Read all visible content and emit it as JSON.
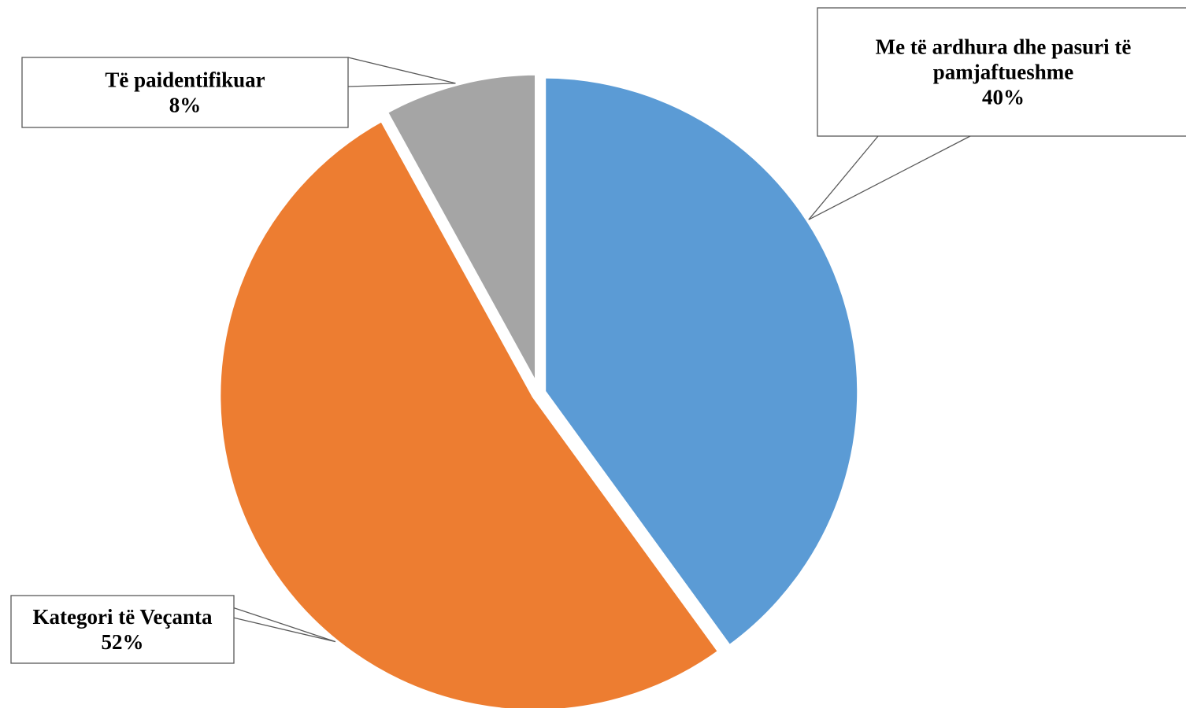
{
  "chart_data": {
    "type": "pie",
    "slices": [
      {
        "label_lines": [
          "Me të ardhura dhe pasuri të",
          "pamjaftueshme"
        ],
        "value": 40,
        "value_label": "40%",
        "color": "#5B9BD5"
      },
      {
        "label_lines": [
          "Kategori të Veçanta"
        ],
        "value": 52,
        "value_label": "52%",
        "color": "#ED7D31"
      },
      {
        "label_lines": [
          "Të paidentifikuar"
        ],
        "value": 8,
        "value_label": "8%",
        "color": "#A5A5A5"
      }
    ],
    "start_angle_deg": 0,
    "direction": "clockwise",
    "data_labels": "callouts",
    "legend": "none"
  }
}
